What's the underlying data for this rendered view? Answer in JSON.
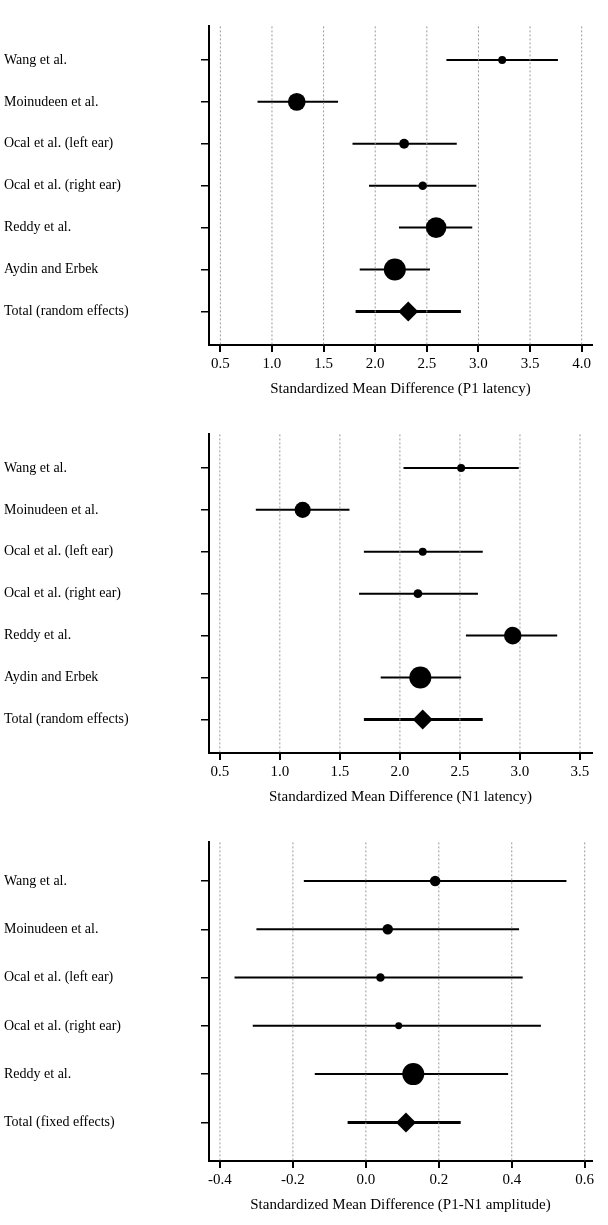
{
  "chart_data": [
    {
      "type": "bubble",
      "orientation": "horizontal",
      "xlabel": "Standardized Mean Difference (P1 latency)",
      "categories": [
        "Wang et al.",
        "Moinudeen et al.",
        "Ocal et al. (left ear)",
        "Ocal et al. (right ear)",
        "Reddy et al.",
        "Aydin and Erbek",
        "Total (random effects)"
      ],
      "xlim": [
        0.39,
        4.1
      ],
      "xticks": [
        {
          "value": 0.5,
          "label": "0.5"
        },
        {
          "value": 1,
          "label": "1.0"
        },
        {
          "value": 1.5,
          "label": "1.5"
        },
        {
          "value": 2,
          "label": "2.0"
        },
        {
          "value": 2.5,
          "label": "2.5"
        },
        {
          "value": 3,
          "label": "3.0"
        },
        {
          "value": 3.5,
          "label": "3.5"
        },
        {
          "value": 4,
          "label": "4.0"
        }
      ],
      "grid": "x",
      "series": [
        {
          "type": "bubble",
          "color": "#000000",
          "values": [
            3.23,
            1.24,
            2.28,
            2.46,
            2.59,
            2.19,
            null
          ],
          "errors": [
            [
              2.69,
              3.77
            ],
            [
              0.86,
              1.64
            ],
            [
              1.78,
              2.79
            ],
            [
              1.94,
              2.98
            ],
            [
              2.23,
              2.94
            ],
            [
              1.85,
              2.53
            ],
            null
          ],
          "sizes": [
            0.13,
            0.65,
            0.2,
            0.15,
            0.88,
            1,
            null
          ]
        },
        {
          "type": "scatter",
          "marker": "diamond",
          "color": "#000000",
          "values": [
            null,
            null,
            null,
            null,
            null,
            null,
            2.32
          ],
          "errors": [
            null,
            null,
            null,
            null,
            null,
            null,
            [
              1.81,
              2.83
            ]
          ]
        }
      ]
    },
    {
      "type": "bubble",
      "orientation": "horizontal",
      "xlabel": "Standardized Mean Difference (N1 latency)",
      "categories": [
        "Wang et al.",
        "Moinudeen et al.",
        "Ocal et al. (left ear)",
        "Ocal et al. (right ear)",
        "Reddy et al.",
        "Aydin and Erbek",
        "Total (random effects)"
      ],
      "xlim": [
        0.41,
        3.6
      ],
      "xticks": [
        {
          "value": 0.5,
          "label": "0.5"
        },
        {
          "value": 1,
          "label": "1.0"
        },
        {
          "value": 1.5,
          "label": "1.5"
        },
        {
          "value": 2,
          "label": "2.0"
        },
        {
          "value": 2.5,
          "label": "2.5"
        },
        {
          "value": 3,
          "label": "3.0"
        },
        {
          "value": 3.5,
          "label": "3.5"
        }
      ],
      "grid": "x",
      "series": [
        {
          "type": "bubble",
          "color": "#000000",
          "values": [
            2.51,
            1.19,
            2.19,
            2.15,
            2.94,
            2.17,
            null
          ],
          "errors": [
            [
              2.03,
              2.99
            ],
            [
              0.8,
              1.58
            ],
            [
              1.7,
              2.69
            ],
            [
              1.66,
              2.65
            ],
            [
              2.55,
              3.31
            ],
            [
              1.84,
              2.51
            ],
            null
          ],
          "sizes": [
            0.13,
            0.54,
            0.13,
            0.16,
            0.64,
            1,
            null
          ]
        },
        {
          "type": "scatter",
          "marker": "diamond",
          "color": "#000000",
          "values": [
            null,
            null,
            null,
            null,
            null,
            null,
            2.19
          ],
          "errors": [
            null,
            null,
            null,
            null,
            null,
            null,
            [
              1.7,
              2.69
            ]
          ]
        }
      ]
    },
    {
      "type": "bubble",
      "orientation": "horizontal",
      "xlabel": "Standardized Mean Difference (P1-N1 amplitude)",
      "categories": [
        "Wang et al.",
        "Moinudeen et al.",
        "Ocal et al. (left ear)",
        "Ocal et al. (right ear)",
        "Reddy et al.",
        "Total (fixed effects)"
      ],
      "xlim": [
        -0.43,
        0.62
      ],
      "xticks": [
        {
          "value": -0.4,
          "label": "-0.4"
        },
        {
          "value": -0.2,
          "label": "-0.2"
        },
        {
          "value": 0,
          "label": "0.0"
        },
        {
          "value": 0.2,
          "label": "0.2"
        },
        {
          "value": 0.4,
          "label": "0.4"
        },
        {
          "value": 0.6,
          "label": "0.6"
        }
      ],
      "grid": "x",
      "series": [
        {
          "type": "bubble",
          "color": "#000000",
          "values": [
            0.19,
            0.06,
            0.04,
            0.09,
            0.13,
            null
          ],
          "errors": [
            [
              -0.17,
              0.55
            ],
            [
              -0.3,
              0.42
            ],
            [
              -0.36,
              0.43
            ],
            [
              -0.31,
              0.48
            ],
            [
              -0.14,
              0.39
            ],
            null
          ],
          "sizes": [
            0.23,
            0.23,
            0.15,
            0.1,
            1,
            null
          ]
        },
        {
          "type": "scatter",
          "marker": "diamond",
          "color": "#000000",
          "values": [
            null,
            null,
            null,
            null,
            null,
            0.11
          ],
          "errors": [
            null,
            null,
            null,
            null,
            null,
            [
              -0.05,
              0.26
            ]
          ]
        }
      ]
    }
  ]
}
